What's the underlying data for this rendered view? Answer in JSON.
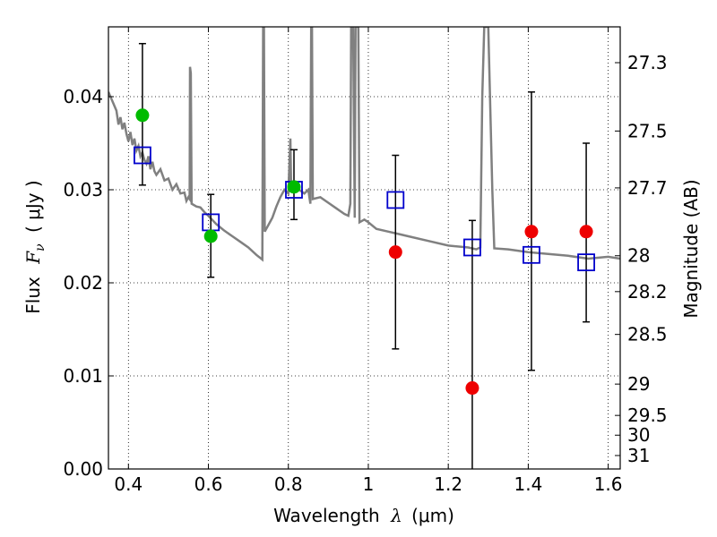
{
  "chart_data": {
    "type": "scatter",
    "xlabel_text": "Wavelength",
    "xlabel_symbol": "λ",
    "xlabel_unit": "(μm)",
    "ylabel_text": "Flux",
    "ylabel_symbol": "F",
    "ylabel_symbol_sub": "ν",
    "ylabel_unit": "( μJy )",
    "ylabel_right": "Magnitude (AB)",
    "xlim": [
      0.35,
      1.63
    ],
    "ylim": [
      0.0,
      0.0475
    ],
    "grid": true,
    "x_ticks": [
      {
        "value": 0.4,
        "label": "0.4"
      },
      {
        "value": 0.6,
        "label": "0.6"
      },
      {
        "value": 0.8,
        "label": "0.8"
      },
      {
        "value": 1.0,
        "label": "1"
      },
      {
        "value": 1.2,
        "label": "1.2"
      },
      {
        "value": 1.4,
        "label": "1.4"
      },
      {
        "value": 1.6,
        "label": "1.6"
      }
    ],
    "y_ticks": [
      {
        "value": 0.0,
        "label": "0.00"
      },
      {
        "value": 0.01,
        "label": "0.01"
      },
      {
        "value": 0.02,
        "label": "0.02"
      },
      {
        "value": 0.03,
        "label": "0.03"
      },
      {
        "value": 0.04,
        "label": "0.04"
      }
    ],
    "mag_ticks": [
      {
        "value": 27.3,
        "label": "27.3"
      },
      {
        "value": 27.5,
        "label": "27.5"
      },
      {
        "value": 27.7,
        "label": "27.7"
      },
      {
        "value": 28.0,
        "label": "28"
      },
      {
        "value": 28.2,
        "label": "28.2"
      },
      {
        "value": 28.5,
        "label": "28.5"
      },
      {
        "value": 29.0,
        "label": "29"
      },
      {
        "value": 29.5,
        "label": "29.5"
      },
      {
        "value": 30.0,
        "label": "30"
      },
      {
        "value": 31.0,
        "label": "31"
      }
    ],
    "colors": {
      "model": "#808080",
      "model_photometry": "#0000cc",
      "detection": "#00bb00",
      "nondetection": "#ee0000",
      "errorbar": "#000000",
      "grid": "#000000"
    },
    "model_spectrum": [
      [
        0.35,
        0.0405
      ],
      [
        0.36,
        0.0395
      ],
      [
        0.37,
        0.0385
      ],
      [
        0.375,
        0.037
      ],
      [
        0.38,
        0.0378
      ],
      [
        0.385,
        0.0365
      ],
      [
        0.39,
        0.0372
      ],
      [
        0.395,
        0.036
      ],
      [
        0.4,
        0.0352
      ],
      [
        0.405,
        0.0362
      ],
      [
        0.41,
        0.0348
      ],
      [
        0.415,
        0.0355
      ],
      [
        0.42,
        0.0342
      ],
      [
        0.425,
        0.0347
      ],
      [
        0.43,
        0.0336
      ],
      [
        0.435,
        0.034
      ],
      [
        0.44,
        0.0332
      ],
      [
        0.445,
        0.0328
      ],
      [
        0.45,
        0.0336
      ],
      [
        0.455,
        0.0322
      ],
      [
        0.46,
        0.033
      ],
      [
        0.465,
        0.032
      ],
      [
        0.47,
        0.0316
      ],
      [
        0.48,
        0.0322
      ],
      [
        0.49,
        0.031
      ],
      [
        0.5,
        0.0312
      ],
      [
        0.51,
        0.03
      ],
      [
        0.52,
        0.0306
      ],
      [
        0.53,
        0.0296
      ],
      [
        0.54,
        0.0297
      ],
      [
        0.545,
        0.0288
      ],
      [
        0.55,
        0.0292
      ],
      [
        0.553,
        0.029
      ],
      [
        0.554,
        0.0432
      ],
      [
        0.556,
        0.0425
      ],
      [
        0.558,
        0.0285
      ],
      [
        0.57,
        0.0282
      ],
      [
        0.58,
        0.0281
      ],
      [
        0.59,
        0.0276
      ],
      [
        0.6,
        0.0272
      ],
      [
        0.62,
        0.0263
      ],
      [
        0.64,
        0.0256
      ],
      [
        0.66,
        0.025
      ],
      [
        0.68,
        0.0244
      ],
      [
        0.7,
        0.0238
      ],
      [
        0.72,
        0.023
      ],
      [
        0.735,
        0.0225
      ],
      [
        0.737,
        0.0475
      ],
      [
        0.739,
        0.0475
      ],
      [
        0.741,
        0.0255
      ],
      [
        0.75,
        0.0262
      ],
      [
        0.76,
        0.027
      ],
      [
        0.77,
        0.0282
      ],
      [
        0.78,
        0.0292
      ],
      [
        0.79,
        0.03
      ],
      [
        0.8,
        0.0296
      ],
      [
        0.805,
        0.0355
      ],
      [
        0.807,
        0.03
      ],
      [
        0.82,
        0.0302
      ],
      [
        0.84,
        0.0296
      ],
      [
        0.85,
        0.03
      ],
      [
        0.855,
        0.0285
      ],
      [
        0.857,
        0.0475
      ],
      [
        0.859,
        0.0475
      ],
      [
        0.861,
        0.029
      ],
      [
        0.88,
        0.0292
      ],
      [
        0.9,
        0.0286
      ],
      [
        0.92,
        0.028
      ],
      [
        0.94,
        0.0274
      ],
      [
        0.95,
        0.0272
      ],
      [
        0.955,
        0.0285
      ],
      [
        0.957,
        0.0475
      ],
      [
        0.962,
        0.0475
      ],
      [
        0.966,
        0.027
      ],
      [
        0.968,
        0.0475
      ],
      [
        0.975,
        0.0475
      ],
      [
        0.978,
        0.0265
      ],
      [
        0.99,
        0.0268
      ],
      [
        1.0,
        0.0265
      ],
      [
        1.02,
        0.0258
      ],
      [
        1.05,
        0.0255
      ],
      [
        1.08,
        0.0252
      ],
      [
        1.1,
        0.025
      ],
      [
        1.15,
        0.0245
      ],
      [
        1.2,
        0.024
      ],
      [
        1.25,
        0.0238
      ],
      [
        1.27,
        0.0236
      ],
      [
        1.28,
        0.0238
      ],
      [
        1.285,
        0.04
      ],
      [
        1.29,
        0.0475
      ],
      [
        1.3,
        0.0475
      ],
      [
        1.31,
        0.03
      ],
      [
        1.315,
        0.0237
      ],
      [
        1.35,
        0.0236
      ],
      [
        1.4,
        0.0233
      ],
      [
        1.45,
        0.0231
      ],
      [
        1.5,
        0.0229
      ],
      [
        1.55,
        0.0226
      ],
      [
        1.6,
        0.0228
      ],
      [
        1.63,
        0.0226
      ]
    ],
    "model_photometry": [
      {
        "x": 0.435,
        "y": 0.0337
      },
      {
        "x": 0.606,
        "y": 0.0265
      },
      {
        "x": 0.814,
        "y": 0.03
      },
      {
        "x": 1.068,
        "y": 0.0289
      },
      {
        "x": 1.26,
        "y": 0.0238
      },
      {
        "x": 1.408,
        "y": 0.023
      },
      {
        "x": 1.545,
        "y": 0.0222
      }
    ],
    "detections": [
      {
        "x": 0.435,
        "y": 0.038,
        "y_low": 0.0305,
        "y_high": 0.0457
      },
      {
        "x": 0.606,
        "y": 0.025,
        "y_low": 0.0206,
        "y_high": 0.0295
      },
      {
        "x": 0.814,
        "y": 0.0303,
        "y_low": 0.0268,
        "y_high": 0.0343
      }
    ],
    "nondetections": [
      {
        "x": 1.068,
        "y": 0.0233,
        "y_low": 0.0129,
        "y_high": 0.0337
      },
      {
        "x": 1.26,
        "y": 0.0087,
        "y_low": 0.0,
        "y_high": 0.0267
      },
      {
        "x": 1.408,
        "y": 0.0255,
        "y_low": 0.0106,
        "y_high": 0.0405
      },
      {
        "x": 1.545,
        "y": 0.0255,
        "y_low": 0.0158,
        "y_high": 0.035
      }
    ]
  }
}
